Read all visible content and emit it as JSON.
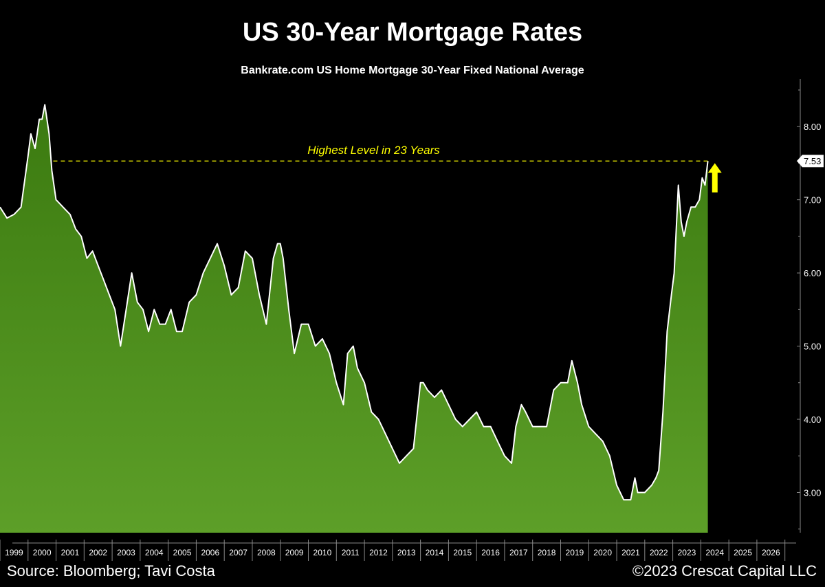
{
  "colors": {
    "background": "#000000",
    "area_fill_top": "#3f7d12",
    "area_fill_bottom": "#5a9e26",
    "line": "#ffffff",
    "annotation": "#ffff00",
    "axis": "#888888"
  },
  "footer": {
    "source": "Source: Bloomberg; Tavi Costa",
    "copyright": "©2023 Crescat Capital LLC"
  },
  "chart_data": {
    "type": "area",
    "title": "US 30-Year Mortgage Rates",
    "subtitle": "Bankrate.com US Home Mortgage 30-Year Fixed National Average",
    "xlabel": "",
    "ylabel": "",
    "x_range": [
      1998.5,
      2026.9
    ],
    "ylim": [
      2.45,
      8.65
    ],
    "y_ticks": [
      "3.00",
      "4.00",
      "5.00",
      "6.00",
      "7.00",
      "8.00"
    ],
    "x_ticks": [
      "1999",
      "2000",
      "2001",
      "2002",
      "2003",
      "2004",
      "2005",
      "2006",
      "2007",
      "2008",
      "2009",
      "2010",
      "2011",
      "2012",
      "2013",
      "2014",
      "2015",
      "2016",
      "2017",
      "2018",
      "2019",
      "2020",
      "2021",
      "2022",
      "2023",
      "2024",
      "2025",
      "2026"
    ],
    "grid": false,
    "last_value_label": "7.53",
    "annotation": {
      "text": "Highest Level in 23 Years",
      "value": 7.53,
      "x_start": 2000.4,
      "x_end": 2023.75
    },
    "arrow": {
      "direction": "up",
      "x": 2024.0,
      "y_from": 7.1,
      "y_to": 7.5
    },
    "series": [
      {
        "x": [
          1998.5,
          1998.75,
          1999.0,
          1999.25,
          1999.5,
          1999.6,
          1999.75,
          1999.9,
          2000.0,
          2000.1,
          2000.25,
          2000.35,
          2000.5,
          2000.75,
          2001.0,
          2001.2,
          2001.4,
          2001.6,
          2001.8,
          2002.0,
          2002.2,
          2002.4,
          2002.6,
          2002.8,
          2003.0,
          2003.2,
          2003.4,
          2003.6,
          2003.8,
          2004.0,
          2004.2,
          2004.4,
          2004.6,
          2004.8,
          2005.0,
          2005.25,
          2005.5,
          2005.75,
          2006.0,
          2006.25,
          2006.5,
          2006.75,
          2007.0,
          2007.25,
          2007.5,
          2007.75,
          2008.0,
          2008.25,
          2008.4,
          2008.5,
          2008.6,
          2008.8,
          2009.0,
          2009.25,
          2009.5,
          2009.75,
          2010.0,
          2010.25,
          2010.5,
          2010.75,
          2010.9,
          2011.1,
          2011.25,
          2011.5,
          2011.75,
          2012.0,
          2012.25,
          2012.5,
          2012.75,
          2013.0,
          2013.25,
          2013.5,
          2013.6,
          2013.75,
          2014.0,
          2014.25,
          2014.5,
          2014.75,
          2015.0,
          2015.25,
          2015.5,
          2015.75,
          2016.0,
          2016.25,
          2016.5,
          2016.75,
          2016.9,
          2017.1,
          2017.25,
          2017.5,
          2017.75,
          2018.0,
          2018.25,
          2018.5,
          2018.75,
          2018.9,
          2019.1,
          2019.25,
          2019.5,
          2019.75,
          2020.0,
          2020.25,
          2020.5,
          2020.75,
          2021.0,
          2021.15,
          2021.25,
          2021.5,
          2021.75,
          2021.9,
          2022.0,
          2022.15,
          2022.3,
          2022.45,
          2022.55,
          2022.7,
          2022.8,
          2022.9,
          2023.0,
          2023.15,
          2023.3,
          2023.45,
          2023.55,
          2023.65,
          2023.75
        ],
        "values": [
          6.9,
          6.75,
          6.8,
          6.9,
          7.6,
          7.9,
          7.7,
          8.1,
          8.1,
          8.3,
          7.9,
          7.4,
          7.0,
          6.9,
          6.8,
          6.6,
          6.5,
          6.2,
          6.3,
          6.1,
          5.9,
          5.7,
          5.5,
          5.0,
          5.5,
          6.0,
          5.6,
          5.5,
          5.2,
          5.5,
          5.3,
          5.3,
          5.5,
          5.2,
          5.2,
          5.6,
          5.7,
          6.0,
          6.2,
          6.4,
          6.1,
          5.7,
          5.8,
          6.3,
          6.2,
          5.7,
          5.3,
          6.2,
          6.4,
          6.4,
          6.2,
          5.5,
          4.9,
          5.3,
          5.3,
          5.0,
          5.1,
          4.9,
          4.5,
          4.2,
          4.9,
          5.0,
          4.7,
          4.5,
          4.1,
          4.0,
          3.8,
          3.6,
          3.4,
          3.5,
          3.6,
          4.5,
          4.5,
          4.4,
          4.3,
          4.4,
          4.2,
          4.0,
          3.9,
          4.0,
          4.1,
          3.9,
          3.9,
          3.7,
          3.5,
          3.4,
          3.9,
          4.2,
          4.1,
          3.9,
          3.9,
          3.9,
          4.4,
          4.5,
          4.5,
          4.8,
          4.5,
          4.2,
          3.9,
          3.8,
          3.7,
          3.5,
          3.1,
          2.9,
          2.9,
          3.2,
          3.0,
          3.0,
          3.1,
          3.2,
          3.3,
          4.1,
          5.2,
          5.7,
          6.0,
          7.2,
          6.7,
          6.5,
          6.7,
          6.9,
          6.9,
          7.0,
          7.3,
          7.2,
          7.53
        ]
      }
    ]
  }
}
